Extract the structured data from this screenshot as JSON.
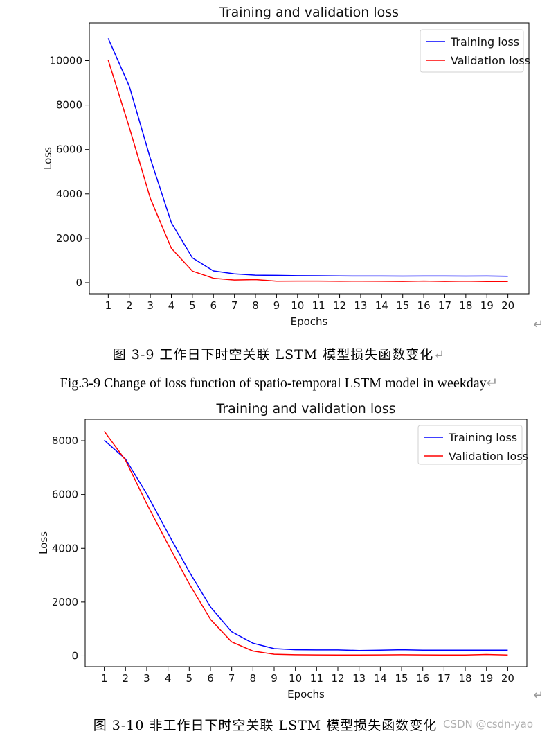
{
  "chart_data": [
    {
      "type": "line",
      "title": "Training and validation loss",
      "xlabel": "Epochs",
      "ylabel": "Loss",
      "x": [
        1,
        2,
        3,
        4,
        5,
        6,
        7,
        8,
        9,
        10,
        11,
        12,
        13,
        14,
        15,
        16,
        17,
        18,
        19,
        20
      ],
      "xlim": [
        0.1,
        21.0
      ],
      "ylim": [
        -500,
        11700
      ],
      "yticks": [
        0,
        2000,
        4000,
        6000,
        8000,
        10000
      ],
      "grid": false,
      "legend_position": "top-right",
      "series": [
        {
          "name": "Training loss",
          "color": "#0000ff",
          "values": [
            11000,
            8850,
            5600,
            2700,
            1120,
            530,
            400,
            340,
            330,
            315,
            310,
            305,
            300,
            298,
            295,
            300,
            298,
            295,
            300,
            290
          ]
        },
        {
          "name": "Validation loss",
          "color": "#ff0000",
          "values": [
            10020,
            7000,
            3800,
            1550,
            520,
            200,
            120,
            140,
            70,
            75,
            75,
            65,
            70,
            65,
            60,
            75,
            60,
            70,
            55,
            55
          ]
        }
      ]
    },
    {
      "type": "line",
      "title": "Training and validation loss",
      "xlabel": "Epochs",
      "ylabel": "Loss",
      "x": [
        1,
        2,
        3,
        4,
        5,
        6,
        7,
        8,
        9,
        10,
        11,
        12,
        13,
        14,
        15,
        16,
        17,
        18,
        19,
        20
      ],
      "xlim": [
        0.1,
        20.9
      ],
      "ylim": [
        -400,
        8800
      ],
      "yticks": [
        0,
        2000,
        4000,
        6000,
        8000
      ],
      "grid": false,
      "legend_position": "top-right",
      "series": [
        {
          "name": "Training loss",
          "color": "#0000ff",
          "values": [
            8020,
            7320,
            6020,
            4560,
            3130,
            1820,
            900,
            470,
            270,
            230,
            220,
            220,
            200,
            210,
            230,
            210,
            210,
            210,
            210,
            210
          ]
        },
        {
          "name": "Validation loss",
          "color": "#ff0000",
          "values": [
            8350,
            7280,
            5650,
            4150,
            2680,
            1360,
            520,
            180,
            60,
            40,
            35,
            30,
            30,
            35,
            40,
            35,
            30,
            30,
            50,
            30
          ]
        }
      ]
    }
  ],
  "captions": {
    "fig1_cn": "图 3-9  工作日下时空关联 LSTM 模型损失函数变化",
    "fig1_en": "Fig.3-9 Change of loss function of spatio-temporal LSTM model in weekday",
    "fig2_cn": "图 3-10   非工作日下时空关联 LSTM 模型损失函数变化",
    "return_mark": "↵",
    "watermark": "CSDN @csdn-yao"
  }
}
